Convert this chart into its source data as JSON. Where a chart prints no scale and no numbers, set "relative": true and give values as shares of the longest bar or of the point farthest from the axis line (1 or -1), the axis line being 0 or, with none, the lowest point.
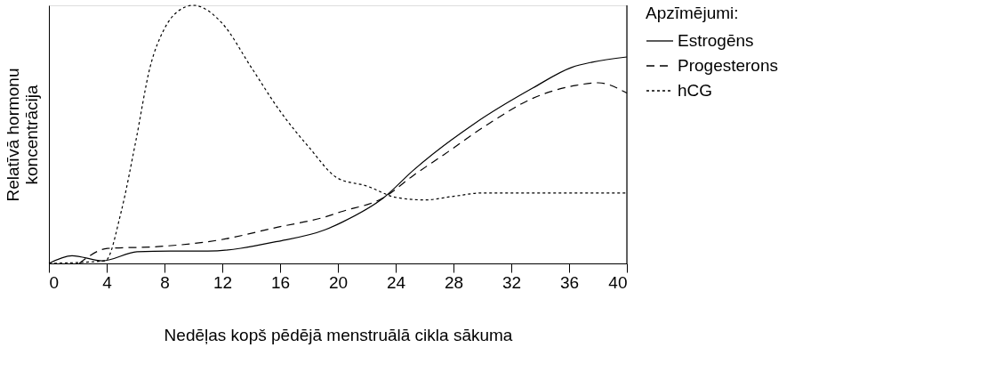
{
  "chart_data": {
    "type": "line",
    "relative": true,
    "xlabel": "Nedēļas kopš pēdējā menstruālā cikla sākuma",
    "ylabel": "Relatīvā hormonu\nkoncentrācija",
    "legend_title": "Apzīmējumi:",
    "legend": "right",
    "grid": false,
    "marker": "none",
    "xlim": [
      0,
      40
    ],
    "xticks": [
      0,
      4,
      8,
      12,
      16,
      20,
      24,
      28,
      32,
      36,
      40
    ],
    "series": [
      {
        "name": "Estrogēns",
        "color": "#000000",
        "line_style": "solid",
        "x": [
          0,
          1.6,
          3.7,
          6.1,
          8.4,
          11,
          15.8,
          19.1,
          20.3,
          23.2,
          25.2,
          29.4,
          33.5,
          36.2,
          37.6,
          40
        ],
        "values": [
          0,
          0.03,
          0.01,
          0.045,
          0.048,
          0.048,
          0.085,
          0.13,
          0.16,
          0.256,
          0.36,
          0.54,
          0.68,
          0.76,
          0.78,
          0.8
        ]
      },
      {
        "name": "Progesterons",
        "color": "#000000",
        "line_style": "dashed",
        "x": [
          2.1,
          4.05,
          7.5,
          11.7,
          15.8,
          19.1,
          20.2,
          23.2,
          25.2,
          27.3,
          30.4,
          33.5,
          36.5,
          38,
          40
        ],
        "values": [
          0,
          0.058,
          0.065,
          0.09,
          0.14,
          0.18,
          0.2,
          0.256,
          0.34,
          0.42,
          0.54,
          0.64,
          0.69,
          0.7,
          0.66
        ]
      },
      {
        "name": "hCG",
        "color": "#000000",
        "line_style": "dotted",
        "x": [
          0,
          3.9,
          5,
          6,
          7,
          8,
          9,
          10,
          12,
          14,
          16,
          18,
          20,
          22,
          24,
          26,
          28,
          30,
          40
        ],
        "values": [
          0,
          0.01,
          0.2,
          0.47,
          0.76,
          0.91,
          0.98,
          1,
          0.93,
          0.76,
          0.59,
          0.45,
          0.33,
          0.3,
          0.256,
          0.246,
          0.26,
          0.273,
          0.273
        ]
      }
    ]
  }
}
